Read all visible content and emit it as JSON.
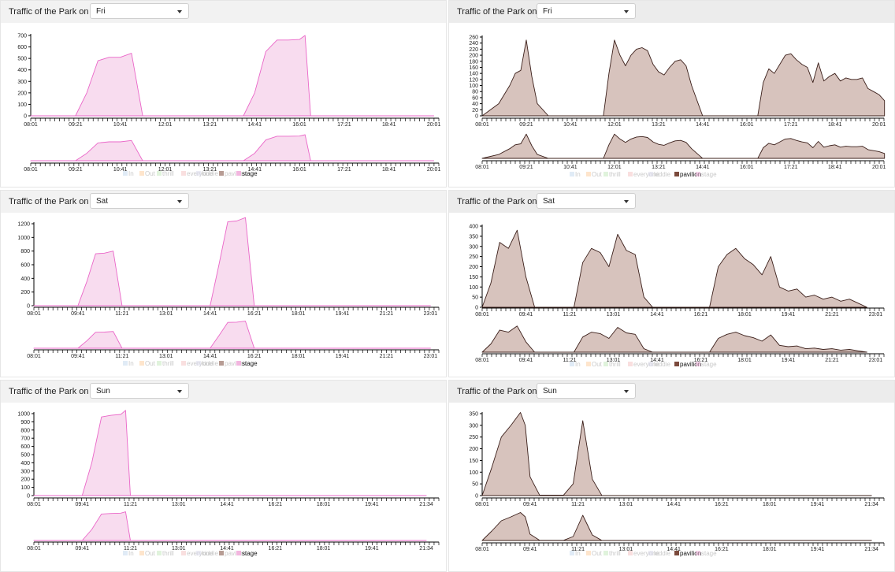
{
  "colors": {
    "stage_fill": "#f8dcef",
    "stage_stroke": "#ea66c8",
    "pavilion_fill": "#d7c3bd",
    "pavilion_stroke": "#3b1f1a",
    "header_bg_right": "#ececec"
  },
  "legend": {
    "items": [
      "In",
      "Out",
      "thrill",
      "everyone",
      "kiddie",
      "pavilion",
      "stage"
    ],
    "swatch_colors": [
      "#c6dbef",
      "#fdd0a2",
      "#c7e9c0",
      "#f4c4c4",
      "#dadaeb",
      "#7b4a3c",
      "#f2b6df"
    ]
  },
  "panels": [
    {
      "id": "left-fri",
      "title": "Traffic of the Park on",
      "day": "Fri",
      "active_series": "stage",
      "y_ticks": [
        "0",
        "100",
        "200",
        "300",
        "400",
        "500",
        "600",
        "700"
      ],
      "y_max": 700,
      "x_ticks": [
        "08:01",
        "09:21",
        "10:41",
        "12:01",
        "13:21",
        "14:41",
        "16:01",
        "17:21",
        "18:41",
        "20:01"
      ]
    },
    {
      "id": "right-fri",
      "title": "Traffic of the Park on",
      "day": "Fri",
      "active_series": "pavilion",
      "y_ticks": [
        "0",
        "20",
        "40",
        "60",
        "80",
        "100",
        "120",
        "140",
        "160",
        "180",
        "200",
        "220",
        "240",
        "260"
      ],
      "y_max": 260,
      "x_ticks": [
        "08:01",
        "09:21",
        "10:41",
        "12:01",
        "13:21",
        "14:41",
        "16:01",
        "17:21",
        "18:41",
        "20:01"
      ]
    },
    {
      "id": "left-sat",
      "title": "Traffic of the Park on",
      "day": "Sat",
      "active_series": "stage",
      "y_ticks": [
        "0",
        "200",
        "400",
        "600",
        "800",
        "1000",
        "1200"
      ],
      "y_max": 1200,
      "x_ticks": [
        "08:01",
        "09:41",
        "11:21",
        "13:01",
        "14:41",
        "16:21",
        "18:01",
        "19:41",
        "21:21",
        "23:01"
      ]
    },
    {
      "id": "right-sat",
      "title": "Traffic of the Park on",
      "day": "Sat",
      "active_series": "pavilion",
      "y_ticks": [
        "0",
        "50",
        "100",
        "150",
        "200",
        "250",
        "300",
        "350",
        "400"
      ],
      "y_max": 400,
      "x_ticks": [
        "08:01",
        "09:41",
        "11:21",
        "13:01",
        "14:41",
        "16:21",
        "18:01",
        "19:41",
        "21:21",
        "23:01"
      ]
    },
    {
      "id": "left-sun",
      "title": "Traffic of the Park on",
      "day": "Sun",
      "active_series": "stage",
      "y_ticks": [
        "0",
        "100",
        "200",
        "300",
        "400",
        "500",
        "600",
        "700",
        "800",
        "900",
        "1000"
      ],
      "y_max": 1000,
      "x_ticks": [
        "08:01",
        "09:41",
        "11:21",
        "13:01",
        "14:41",
        "16:21",
        "18:01",
        "19:41",
        "21:34"
      ]
    },
    {
      "id": "right-sun",
      "title": "Traffic of the Park on",
      "day": "Sun",
      "active_series": "pavilion",
      "y_ticks": [
        "0",
        "50",
        "100",
        "150",
        "200",
        "250",
        "300",
        "350"
      ],
      "y_max": 350,
      "x_ticks": [
        "08:01",
        "09:41",
        "11:21",
        "13:01",
        "14:41",
        "16:21",
        "18:01",
        "19:41",
        "21:34"
      ]
    }
  ],
  "chart_data": [
    {
      "type": "area",
      "title": "",
      "series_name": "stage",
      "xlabel": "",
      "ylabel": "",
      "ylim": [
        0,
        700
      ],
      "x": [
        "08:01",
        "09:21",
        "09:41",
        "10:01",
        "10:21",
        "10:41",
        "11:01",
        "11:21",
        "12:01",
        "13:21",
        "14:21",
        "14:41",
        "15:01",
        "15:21",
        "15:41",
        "16:01",
        "16:11",
        "16:21",
        "17:21",
        "20:01"
      ],
      "values": [
        0,
        0,
        200,
        480,
        510,
        510,
        545,
        0,
        0,
        0,
        0,
        200,
        560,
        660,
        660,
        665,
        700,
        0,
        0,
        0
      ]
    },
    {
      "type": "area",
      "title": "",
      "series_name": "pavilion",
      "xlabel": "",
      "ylabel": "",
      "ylim": [
        0,
        260
      ],
      "x": [
        "08:01",
        "08:31",
        "08:51",
        "09:01",
        "09:11",
        "09:21",
        "09:31",
        "09:41",
        "10:01",
        "11:41",
        "11:51",
        "12:01",
        "12:11",
        "12:21",
        "12:31",
        "12:41",
        "12:51",
        "13:01",
        "13:11",
        "13:21",
        "13:31",
        "13:41",
        "13:51",
        "14:01",
        "14:11",
        "14:21",
        "14:41",
        "16:21",
        "16:31",
        "16:41",
        "16:51",
        "17:01",
        "17:11",
        "17:21",
        "17:31",
        "17:41",
        "17:51",
        "18:01",
        "18:11",
        "18:21",
        "18:31",
        "18:41",
        "18:51",
        "19:01",
        "19:11",
        "19:21",
        "19:31",
        "19:41",
        "19:51",
        "20:01",
        "20:11"
      ],
      "values": [
        0,
        40,
        100,
        140,
        150,
        250,
        130,
        40,
        0,
        0,
        140,
        250,
        200,
        165,
        200,
        220,
        225,
        215,
        170,
        145,
        135,
        160,
        180,
        185,
        165,
        100,
        0,
        0,
        110,
        155,
        140,
        170,
        200,
        205,
        185,
        170,
        160,
        110,
        175,
        115,
        130,
        140,
        115,
        125,
        120,
        120,
        125,
        90,
        80,
        70,
        50
      ]
    },
    {
      "type": "area",
      "title": "",
      "series_name": "stage",
      "xlabel": "",
      "ylabel": "",
      "ylim": [
        0,
        1200
      ],
      "x": [
        "08:01",
        "09:41",
        "10:01",
        "10:21",
        "10:41",
        "11:01",
        "11:21",
        "13:01",
        "14:21",
        "14:41",
        "15:01",
        "15:21",
        "15:41",
        "16:01",
        "16:21",
        "18:01",
        "23:01"
      ],
      "values": [
        0,
        0,
        350,
        760,
        770,
        800,
        0,
        0,
        0,
        0,
        600,
        1230,
        1240,
        1290,
        0,
        0,
        0
      ]
    },
    {
      "type": "area",
      "title": "",
      "series_name": "pavilion",
      "xlabel": "",
      "ylabel": "",
      "ylim": [
        0,
        400
      ],
      "x": [
        "08:01",
        "08:21",
        "08:41",
        "09:01",
        "09:21",
        "09:41",
        "10:01",
        "11:31",
        "11:51",
        "12:11",
        "12:31",
        "12:51",
        "13:11",
        "13:31",
        "13:51",
        "14:11",
        "14:31",
        "14:51",
        "16:41",
        "17:01",
        "17:21",
        "17:41",
        "18:01",
        "18:21",
        "18:41",
        "19:01",
        "19:21",
        "19:41",
        "20:01",
        "20:21",
        "20:41",
        "21:01",
        "21:21",
        "21:41",
        "22:01",
        "22:21",
        "22:41"
      ],
      "values": [
        0,
        120,
        320,
        290,
        380,
        150,
        0,
        0,
        220,
        290,
        270,
        200,
        360,
        280,
        260,
        50,
        0,
        0,
        0,
        200,
        260,
        290,
        240,
        210,
        160,
        250,
        100,
        80,
        90,
        50,
        60,
        40,
        50,
        30,
        40,
        20,
        0
      ]
    },
    {
      "type": "area",
      "title": "",
      "series_name": "stage",
      "xlabel": "",
      "ylabel": "",
      "ylim": [
        0,
        1000
      ],
      "x": [
        "08:01",
        "09:41",
        "10:01",
        "10:21",
        "10:41",
        "11:01",
        "11:11",
        "11:21",
        "21:34"
      ],
      "values": [
        0,
        0,
        400,
        960,
        980,
        990,
        1040,
        0,
        0
      ]
    },
    {
      "type": "area",
      "title": "",
      "series_name": "pavilion",
      "xlabel": "",
      "ylabel": "",
      "ylim": [
        0,
        350
      ],
      "x": [
        "08:01",
        "08:21",
        "08:41",
        "09:01",
        "09:21",
        "09:31",
        "09:41",
        "10:01",
        "10:51",
        "11:11",
        "11:31",
        "11:51",
        "12:11",
        "21:34"
      ],
      "values": [
        0,
        120,
        250,
        300,
        355,
        300,
        80,
        2,
        2,
        50,
        320,
        70,
        0,
        0
      ]
    }
  ]
}
